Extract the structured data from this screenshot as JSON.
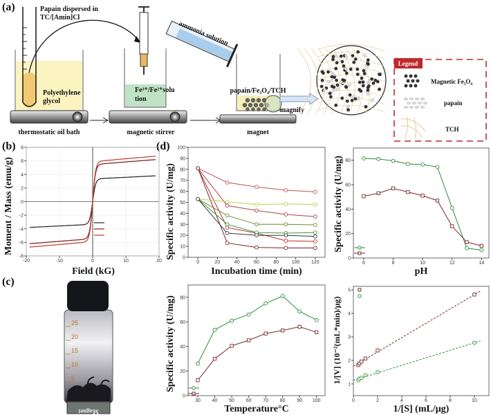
{
  "panels": {
    "a": {
      "label": "(a)",
      "test_tube_label": "Papain dispersed in TC/[Amin]Cl",
      "test_tube_label_line1": "Papain dispersed in",
      "test_tube_label_line2": "TC/[Amin]Cl",
      "bath_liquid_line1": "Polyethylene",
      "bath_liquid_line2": "glycol",
      "step1": "thermostatic oil bath",
      "fe_solution_line1": "Fe³⁺/Fe²⁺solu",
      "fe_solution_line2": "tion",
      "step2": "magnetic stirrer",
      "cylinder": "ammonia solution",
      "product": "papain/Fe₃O₄/TCH",
      "step3": "magnet",
      "magnify": "magnify",
      "legend": {
        "title": "Legend",
        "items": [
          "Magnetic Fe₃O₄",
          "papain",
          "TCH"
        ]
      }
    },
    "b": {
      "label": "(b)"
    },
    "c": {
      "label": "(c)",
      "vial_scale": [
        "25",
        "20",
        "15",
        "10",
        "5"
      ],
      "magnet_label": "Magnet"
    },
    "d": {
      "label": "(d)"
    }
  },
  "chart_data": [
    {
      "id": "magnetization",
      "type": "line",
      "xlabel": "Field (kG)",
      "ylabel": "Moment / Mass (emu/g)",
      "xlim": [
        -20,
        20
      ],
      "ylim": [
        -8,
        8
      ],
      "xticks": [
        -20,
        -10,
        0,
        10,
        20
      ],
      "yticks": [
        -8,
        -6,
        -4,
        -2,
        0,
        2,
        4,
        6,
        8
      ],
      "grid": true,
      "legend": "center-right (entries without text)",
      "series": [
        {
          "color": "#222222",
          "saturation": 3.8
        },
        {
          "color": "#7a1b1b",
          "saturation": 6.2
        },
        {
          "color": "#c0392b",
          "saturation": 6.7
        }
      ]
    },
    {
      "id": "incubation",
      "type": "line",
      "xlabel": "Incubation time (min)",
      "ylabel": "Specific activity (U/mg)",
      "xlim": [
        -10,
        130
      ],
      "ylim": [
        0,
        100
      ],
      "xticks": [
        0,
        20,
        40,
        60,
        80,
        100,
        120
      ],
      "yticks": [
        0,
        10,
        20,
        30,
        40,
        50,
        60,
        70,
        80,
        90,
        100
      ],
      "x": [
        0,
        30,
        60,
        90,
        120
      ],
      "series": [
        {
          "color": "#c0505a",
          "values": [
            81,
            68,
            64,
            61,
            59.5
          ]
        },
        {
          "color": "#b0404a",
          "values": [
            81,
            47,
            42.5,
            39,
            37
          ]
        },
        {
          "color": "#c02828",
          "values": [
            81,
            27,
            22,
            15,
            14.5
          ]
        },
        {
          "color": "#7a2020",
          "values": [
            81,
            13,
            9,
            8.5,
            8.5
          ]
        },
        {
          "color": "#b8d050",
          "values": [
            53,
            50.5,
            48,
            48.5,
            48
          ]
        },
        {
          "color": "#6a8a2a",
          "values": [
            53,
            38,
            30,
            30,
            29.5
          ]
        },
        {
          "color": "#3a9a3a",
          "values": [
            53,
            30,
            22.5,
            22,
            22.5
          ]
        },
        {
          "color": "#333333",
          "values": [
            53,
            22,
            20,
            20,
            19
          ]
        }
      ]
    },
    {
      "id": "ph",
      "type": "line",
      "xlabel": "pH",
      "ylabel": "Specific activity (U/mg)",
      "xlim": [
        5.3,
        14.5
      ],
      "ylim": [
        0,
        90
      ],
      "xticks": [
        6,
        8,
        10,
        12,
        14
      ],
      "yticks": [
        0,
        20,
        40,
        60,
        80
      ],
      "x": [
        6,
        7,
        8,
        9,
        10,
        11,
        12,
        13,
        14
      ],
      "legend": "bottom-left (entries without text)",
      "series": [
        {
          "color": "#2e8b3a",
          "marker": "circle",
          "values": [
            81.5,
            81,
            79.5,
            77,
            76.5,
            74.5,
            41,
            8,
            6.5
          ]
        },
        {
          "color": "#7a2a2a",
          "marker": "square",
          "values": [
            50.5,
            53,
            57,
            54,
            51,
            47,
            26,
            13,
            10
          ]
        }
      ]
    },
    {
      "id": "temperature",
      "type": "line",
      "xlabel": "Temperature°C",
      "ylabel": "Specific activity (U/mg)",
      "xlim": [
        24.3,
        105
      ],
      "ylim": [
        0,
        90
      ],
      "xticks": [
        30,
        40,
        50,
        60,
        70,
        80,
        90,
        100
      ],
      "yticks": [
        0,
        20,
        40,
        60,
        80
      ],
      "x": [
        30,
        40,
        50,
        60,
        70,
        80,
        90,
        100
      ],
      "legend": "bottom-left (entries without text)",
      "series": [
        {
          "color": "#2e8b3a",
          "marker": "circle",
          "values": [
            26,
            53.5,
            61,
            66,
            75,
            81,
            68.5,
            61.5
          ]
        },
        {
          "color": "#7a2a2a",
          "marker": "square",
          "values": [
            12.5,
            30,
            40.5,
            45,
            50.5,
            53,
            56,
            51.5
          ]
        }
      ]
    },
    {
      "id": "lineweaver-burk",
      "type": "scatter",
      "xlabel": "1/[S] (mL/μg)",
      "ylabel": "1/[V] (10⁻²(mL*min)/μg)",
      "xlim": [
        0,
        11.2
      ],
      "ylim": [
        0.5,
        5.15
      ],
      "xticks": [
        0,
        2,
        4,
        6,
        8,
        10
      ],
      "yticks": [
        1,
        2,
        3,
        4,
        5
      ],
      "legend": "top-left (entries without text)",
      "series": [
        {
          "color": "#7a2a2a",
          "marker": "square",
          "x": [
            0.4,
            0.5,
            0.67,
            1,
            2,
            10
          ],
          "values": [
            1.8,
            1.87,
            1.95,
            2.08,
            2.42,
            4.8
          ],
          "fit": [
            [
              0,
              1.75
            ],
            [
              10.5,
              4.95
            ]
          ]
        },
        {
          "color": "#2e8b3a",
          "marker": "circle",
          "x": [
            0.4,
            0.5,
            0.67,
            1,
            2,
            10
          ],
          "values": [
            1.15,
            1.22,
            1.26,
            1.37,
            1.5,
            2.75
          ],
          "fit": [
            [
              0,
              1.15
            ],
            [
              10.5,
              2.83
            ]
          ]
        }
      ]
    }
  ]
}
